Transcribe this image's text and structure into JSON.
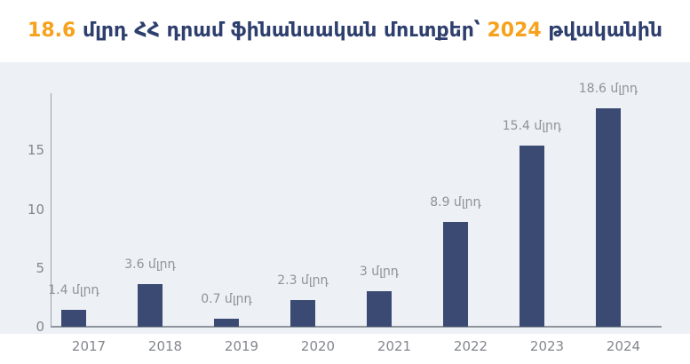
{
  "title": {
    "value": "18.6",
    "middle": " մլրդ ՀՀ դրամ ֆինանսական մուտքեր՝ ",
    "year": "2024",
    "end": " թվականին"
  },
  "colors": {
    "accent_orange": "#F7A21C",
    "title_navy": "#2E3F6E",
    "bar_navy": "#3A4A73",
    "panel_background": "#EDF0F5",
    "axis_line": "#9CA1A9",
    "axis_line_dark": "#8F959D",
    "tick_label_gray": "#83878D",
    "data_label_gray": "#8F9297"
  },
  "chart_data": {
    "type": "bar",
    "title": "18.6 մլրդ ՀՀ դրամ ֆինանսական մուտքեր՝ 2024 թվականին",
    "categories": [
      "2017",
      "2018",
      "2019",
      "2020",
      "2021",
      "2022",
      "2023",
      "2024"
    ],
    "values": [
      1.4,
      3.6,
      0.7,
      2.3,
      3,
      8.9,
      15.4,
      18.6
    ],
    "data_labels": [
      "1.4 մլրդ",
      "3.6 մլրդ",
      "0.7 մլրդ",
      "2.3 մլրդ",
      "3 մլրդ",
      "8.9 մլրդ",
      "15.4 մլրդ",
      "18.6 մլրդ"
    ],
    "unit_label": "մլրդ",
    "xlabel": "",
    "ylabel": "",
    "yticks": [
      0,
      5,
      10,
      15
    ],
    "ylim": [
      0,
      20
    ],
    "grid": false,
    "legend": "none"
  }
}
